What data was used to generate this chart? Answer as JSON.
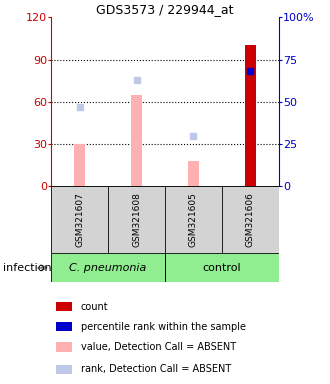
{
  "title": "GDS3573 / 229944_at",
  "samples": [
    "GSM321607",
    "GSM321608",
    "GSM321605",
    "GSM321606"
  ],
  "group_labels": [
    "C. pneumonia",
    "control"
  ],
  "sample_bg_color": "#d3d3d3",
  "ylim_left": [
    0,
    120
  ],
  "ylim_right": [
    0,
    100
  ],
  "yticks_left": [
    0,
    30,
    60,
    90,
    120
  ],
  "ytick_labels_left": [
    "0",
    "30",
    "60",
    "90",
    "120"
  ],
  "yticks_right": [
    0,
    25,
    50,
    75,
    100
  ],
  "ytick_labels_right": [
    "0",
    "25",
    "50",
    "75",
    "100%"
  ],
  "left_axis_color": "#cc0000",
  "right_axis_color": "#0000cc",
  "bar_values": [
    30,
    65,
    18,
    100
  ],
  "bar_colors_absent": [
    "#ffb0b0",
    "#ffb0b0",
    "#ffb0b0",
    null
  ],
  "bar_colors_present": [
    null,
    null,
    null,
    "#cc0000"
  ],
  "rank_dots_absent": [
    47,
    63,
    30,
    null
  ],
  "rank_dots_present": [
    null,
    null,
    null,
    68
  ],
  "rank_dot_absent_color": "#c0c8e8",
  "rank_dot_present_color": "#0000cc",
  "x_positions": [
    0.5,
    1.5,
    2.5,
    3.5
  ],
  "bar_width": 0.18,
  "legend": [
    {
      "color": "#cc0000",
      "label": "count"
    },
    {
      "color": "#0000cc",
      "label": "percentile rank within the sample"
    },
    {
      "color": "#ffb0b0",
      "label": "value, Detection Call = ABSENT"
    },
    {
      "color": "#c0c8e8",
      "label": "rank, Detection Call = ABSENT"
    }
  ]
}
